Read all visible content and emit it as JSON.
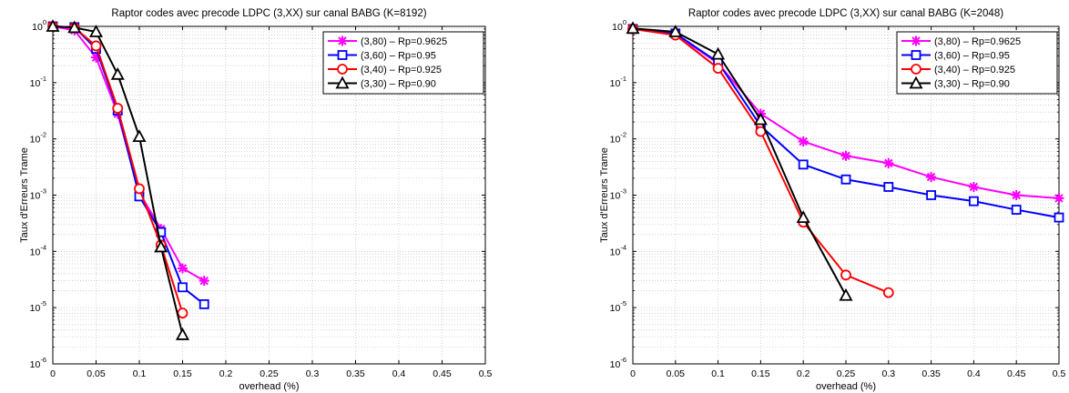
{
  "chart_data": [
    {
      "type": "line",
      "title": "Raptor codes avec precode LDPC (3,XX) sur canal BABG (K=8192)",
      "xlabel": "overhead (%)",
      "ylabel": "Taux d'Erreurs Trame",
      "xlim": [
        0,
        0.5
      ],
      "ylim": [
        1e-06,
        1
      ],
      "yscale": "log",
      "grid": true,
      "legend_position": "top-right",
      "xticks": [
        0,
        0.05,
        0.1,
        0.15,
        0.2,
        0.25,
        0.3,
        0.35,
        0.4,
        0.45,
        0.5
      ],
      "xtick_labels": [
        "0",
        "0.05",
        "0.1",
        "0.15",
        "0.2",
        "0.25",
        "0.3",
        "0.35",
        "0.4",
        "0.45",
        "0.5"
      ],
      "ytick_exponents": [
        -6,
        -5,
        -4,
        -3,
        -2,
        -1,
        0
      ],
      "series": [
        {
          "name": "(3,80) – Rp=0.9625",
          "color": "#ff00ff",
          "marker": "star",
          "x": [
            0,
            0.025,
            0.05,
            0.075,
            0.1,
            0.125,
            0.15,
            0.175
          ],
          "y": [
            1.0,
            0.85,
            0.28,
            0.028,
            0.0011,
            0.00025,
            5e-05,
            3e-05
          ]
        },
        {
          "name": "(3,60) – Rp=0.95",
          "color": "#0000ff",
          "marker": "square",
          "x": [
            0,
            0.025,
            0.05,
            0.075,
            0.1,
            0.125,
            0.15,
            0.175
          ],
          "y": [
            1.0,
            0.97,
            0.4,
            0.032,
            0.00095,
            0.00022,
            2.3e-05,
            1.15e-05
          ]
        },
        {
          "name": "(3,40) – Rp=0.925",
          "color": "#ff0000",
          "marker": "circle",
          "x": [
            0,
            0.025,
            0.05,
            0.075,
            0.1,
            0.125,
            0.15
          ],
          "y": [
            1.0,
            0.95,
            0.45,
            0.035,
            0.0013,
            0.00013,
            8e-06
          ]
        },
        {
          "name": "(3,30) – Rp=0.90",
          "color": "#000000",
          "marker": "triangle",
          "x": [
            0,
            0.025,
            0.05,
            0.075,
            0.1,
            0.125,
            0.15
          ],
          "y": [
            1.0,
            0.95,
            0.8,
            0.14,
            0.011,
            0.00012,
            3.3e-06
          ]
        }
      ]
    },
    {
      "type": "line",
      "title": "Raptor codes avec precode LDPC (3,XX) sur canal BABG (K=2048)",
      "xlabel": "overhead (%)",
      "ylabel": "Taux d'Erreurs Trame",
      "xlim": [
        0,
        0.5
      ],
      "ylim": [
        1e-06,
        1
      ],
      "yscale": "log",
      "grid": true,
      "legend_position": "top-right",
      "xticks": [
        0,
        0.05,
        0.1,
        0.15,
        0.2,
        0.25,
        0.3,
        0.35,
        0.4,
        0.45,
        0.5
      ],
      "xtick_labels": [
        "0",
        "0.05",
        "0.1",
        "0.15",
        "0.2",
        "0.25",
        "0.3",
        "0.35",
        "0.4",
        "0.45",
        "0.5"
      ],
      "ytick_exponents": [
        -6,
        -5,
        -4,
        -3,
        -2,
        -1,
        0
      ],
      "series": [
        {
          "name": "(3,80) – Rp=0.9625",
          "color": "#ff00ff",
          "marker": "star",
          "x": [
            0,
            0.05,
            0.1,
            0.15,
            0.2,
            0.25,
            0.3,
            0.35,
            0.4,
            0.45,
            0.5
          ],
          "y": [
            0.9,
            0.72,
            0.22,
            0.028,
            0.009,
            0.005,
            0.0037,
            0.0021,
            0.0014,
            0.001,
            0.00088
          ]
        },
        {
          "name": "(3,60) – Rp=0.95",
          "color": "#0000ff",
          "marker": "square",
          "x": [
            0,
            0.05,
            0.1,
            0.15,
            0.2,
            0.25,
            0.3,
            0.35,
            0.4,
            0.45,
            0.5
          ],
          "y": [
            0.9,
            0.75,
            0.23,
            0.017,
            0.0035,
            0.0019,
            0.0014,
            0.001,
            0.00078,
            0.00055,
            0.0004
          ]
        },
        {
          "name": "(3,40) – Rp=0.925",
          "color": "#ff0000",
          "marker": "circle",
          "x": [
            0,
            0.05,
            0.1,
            0.15,
            0.2,
            0.25,
            0.3
          ],
          "y": [
            0.9,
            0.7,
            0.18,
            0.0135,
            0.00033,
            3.8e-05,
            1.85e-05
          ]
        },
        {
          "name": "(3,30) – Rp=0.90",
          "color": "#000000",
          "marker": "triangle",
          "x": [
            0,
            0.05,
            0.1,
            0.15,
            0.2,
            0.25
          ],
          "y": [
            0.92,
            0.8,
            0.32,
            0.022,
            0.0004,
            1.65e-05
          ]
        }
      ]
    }
  ]
}
